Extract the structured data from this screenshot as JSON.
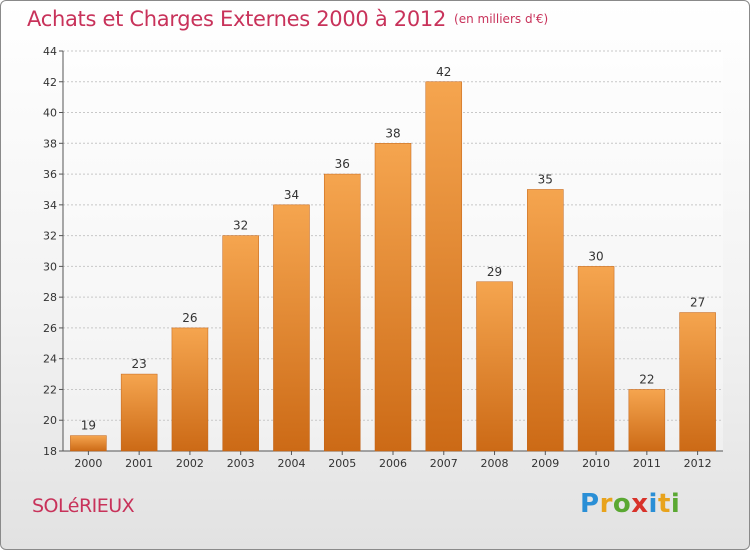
{
  "chart_data": {
    "type": "bar",
    "title": "Achats et Charges Externes 2000 à 2012",
    "unit_label": "(en milliers d'€)",
    "categories": [
      "2000",
      "2001",
      "2002",
      "2003",
      "2004",
      "2005",
      "2006",
      "2007",
      "2008",
      "2009",
      "2010",
      "2011",
      "2012"
    ],
    "values": [
      19,
      23,
      26,
      32,
      34,
      36,
      38,
      42,
      29,
      35,
      30,
      22,
      27
    ],
    "ylim": [
      18,
      44
    ],
    "yticks": [
      18,
      20,
      22,
      24,
      26,
      28,
      30,
      32,
      34,
      36,
      38,
      40,
      42,
      44
    ],
    "grid": true,
    "bar_color_top": "#f5a54f",
    "bar_color_bottom": "#cc6a16"
  },
  "commune": "SOLéRIEUX",
  "logo": {
    "text": "Proxiti",
    "letters": [
      {
        "char": "P",
        "color": "#2a8fd6"
      },
      {
        "char": "r",
        "color": "#e8a31c"
      },
      {
        "char": "o",
        "color": "#5aa832"
      },
      {
        "char": "x",
        "color": "#d8322a"
      },
      {
        "char": "i",
        "color": "#2a8fd6"
      },
      {
        "char": "t",
        "color": "#e8a31c"
      },
      {
        "char": "i",
        "color": "#5aa832"
      }
    ]
  }
}
